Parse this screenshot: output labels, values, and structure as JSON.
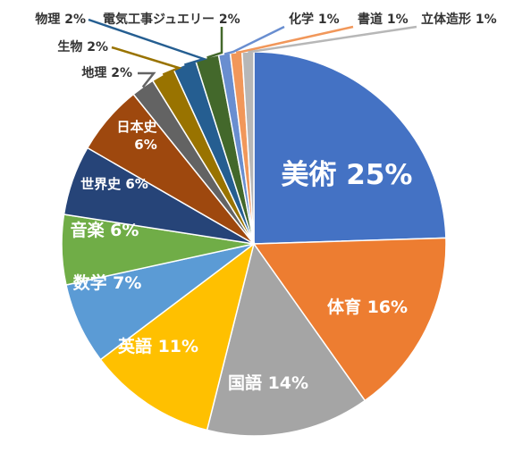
{
  "chart_data": {
    "type": "pie",
    "start_angle_deg": 0,
    "direction": "clockwise",
    "slices": [
      {
        "label": "美術",
        "value": 25,
        "display": "美術 25%",
        "color": "#4472C4"
      },
      {
        "label": "体育",
        "value": 16,
        "display": "体育 16%",
        "color": "#ED7D31"
      },
      {
        "label": "国語",
        "value": 14,
        "display": "国語 14%",
        "color": "#A5A5A5"
      },
      {
        "label": "英語",
        "value": 11,
        "display": "英語 11%",
        "color": "#FFC000"
      },
      {
        "label": "数学",
        "value": 7,
        "display": "数学 7%",
        "color": "#5B9BD5"
      },
      {
        "label": "音楽",
        "value": 6,
        "display": "音楽 6%",
        "color": "#70AD47"
      },
      {
        "label": "世界史",
        "value": 6,
        "display": "世界史 6%",
        "color": "#264478"
      },
      {
        "label": "日本史",
        "value": 6,
        "display": "日本史 6%",
        "display_lines": [
          "日本史",
          "6%"
        ],
        "color": "#9E480E"
      },
      {
        "label": "地理",
        "value": 2,
        "display": "地理 2%",
        "color": "#636363"
      },
      {
        "label": "生物",
        "value": 2,
        "display": "生物 2%",
        "color": "#997300"
      },
      {
        "label": "物理",
        "value": 2,
        "display": "物理 2%",
        "color": "#255E91"
      },
      {
        "label": "電気工事ジュエリー",
        "value": 2,
        "display": "電気工事ジュエリー 2%",
        "color": "#43682B"
      },
      {
        "label": "化学",
        "value": 1,
        "display": "化学 1%",
        "color": "#698ED0"
      },
      {
        "label": "書道",
        "value": 1,
        "display": "書道 1%",
        "color": "#F1975A"
      },
      {
        "label": "立体造形",
        "value": 1,
        "display": "立体造形 1%",
        "color": "#B7B7B7"
      }
    ]
  }
}
